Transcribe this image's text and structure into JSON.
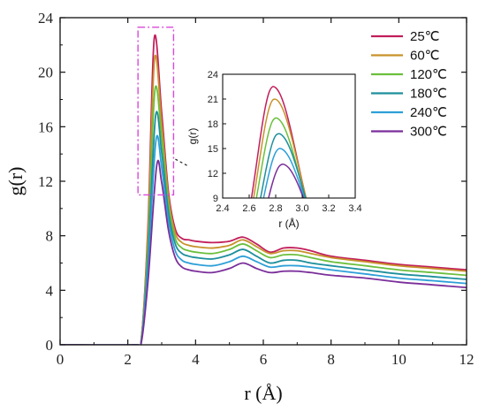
{
  "chart_data": [
    {
      "type": "line",
      "xlabel": "r (Å)",
      "ylabel": "g(r)",
      "xlim": [
        0,
        12
      ],
      "ylim": [
        0,
        24
      ],
      "xticks": [
        "0",
        "2",
        "4",
        "6",
        "8",
        "10",
        "12"
      ],
      "yticks": [
        "0",
        "4",
        "8",
        "12",
        "16",
        "20",
        "24"
      ],
      "legend_position": "top-right",
      "series": [
        {
          "name": "25℃",
          "color": "#c21f5c",
          "x": [
            0,
            2.2,
            2.4,
            2.6,
            2.78,
            3.0,
            3.2,
            3.4,
            3.6,
            3.8,
            4.0,
            4.5,
            5.0,
            5.4,
            5.8,
            6.2,
            6.6,
            7.0,
            7.4,
            8.0,
            9.0,
            10.0,
            11.0,
            12.0
          ],
          "y": [
            0,
            0,
            0.5,
            9.0,
            22.5,
            17.0,
            11.2,
            8.5,
            7.8,
            7.7,
            7.6,
            7.5,
            7.6,
            7.9,
            7.4,
            6.8,
            7.1,
            7.1,
            6.9,
            6.5,
            6.2,
            5.9,
            5.7,
            5.5
          ]
        },
        {
          "name": "60℃",
          "color": "#c7922a",
          "x": [
            0,
            2.2,
            2.4,
            2.6,
            2.79,
            3.0,
            3.2,
            3.4,
            3.6,
            3.8,
            4.0,
            4.5,
            5.0,
            5.4,
            5.8,
            6.2,
            6.6,
            7.0,
            7.4,
            8.0,
            9.0,
            10.0,
            11.0,
            12.0
          ],
          "y": [
            0,
            0,
            0.5,
            8.4,
            21.0,
            16.2,
            10.8,
            8.2,
            7.5,
            7.3,
            7.2,
            7.1,
            7.3,
            7.7,
            7.2,
            6.7,
            6.9,
            6.9,
            6.7,
            6.4,
            6.1,
            5.8,
            5.6,
            5.4
          ]
        },
        {
          "name": "120℃",
          "color": "#6cbf3c",
          "x": [
            0,
            2.2,
            2.4,
            2.6,
            2.8,
            3.0,
            3.2,
            3.4,
            3.6,
            3.8,
            4.0,
            4.5,
            5.0,
            5.4,
            5.8,
            6.2,
            6.6,
            7.0,
            7.4,
            8.0,
            9.0,
            10.0,
            11.0,
            12.0
          ],
          "y": [
            0,
            0,
            0.4,
            7.5,
            18.7,
            15.2,
            10.3,
            7.8,
            7.1,
            6.9,
            6.8,
            6.7,
            7.0,
            7.4,
            6.9,
            6.4,
            6.6,
            6.6,
            6.4,
            6.1,
            5.8,
            5.5,
            5.3,
            5.1
          ]
        },
        {
          "name": "180℃",
          "color": "#1e8f9c",
          "x": [
            0,
            2.2,
            2.4,
            2.6,
            2.82,
            3.0,
            3.2,
            3.4,
            3.6,
            3.8,
            4.0,
            4.5,
            5.0,
            5.4,
            5.8,
            6.2,
            6.6,
            7.0,
            7.4,
            8.0,
            9.0,
            10.0,
            11.0,
            12.0
          ],
          "y": [
            0,
            0,
            0.3,
            6.6,
            16.8,
            14.1,
            9.7,
            7.4,
            6.7,
            6.5,
            6.4,
            6.3,
            6.6,
            7.0,
            6.5,
            6.0,
            6.2,
            6.2,
            6.0,
            5.8,
            5.5,
            5.2,
            5.0,
            4.8
          ]
        },
        {
          "name": "240℃",
          "color": "#2d9fd8",
          "x": [
            0,
            2.2,
            2.4,
            2.6,
            2.83,
            3.0,
            3.2,
            3.4,
            3.6,
            3.8,
            4.0,
            4.5,
            5.0,
            5.4,
            5.8,
            6.2,
            6.6,
            7.0,
            7.4,
            8.0,
            9.0,
            10.0,
            11.0,
            12.0
          ],
          "y": [
            0,
            0,
            0.3,
            5.8,
            15.0,
            13.0,
            9.1,
            6.9,
            6.2,
            6.0,
            5.9,
            5.8,
            6.1,
            6.5,
            6.1,
            5.7,
            5.8,
            5.8,
            5.7,
            5.5,
            5.2,
            4.9,
            4.7,
            4.5
          ]
        },
        {
          "name": "300℃",
          "color": "#7a2e9a",
          "x": [
            0,
            2.2,
            2.4,
            2.6,
            2.85,
            3.0,
            3.2,
            3.4,
            3.6,
            3.8,
            4.0,
            4.5,
            5.0,
            5.4,
            5.8,
            6.2,
            6.6,
            7.0,
            7.4,
            8.0,
            9.0,
            10.0,
            11.0,
            12.0
          ],
          "y": [
            0,
            0,
            0.2,
            4.8,
            13.1,
            11.9,
            8.4,
            6.4,
            5.7,
            5.5,
            5.4,
            5.3,
            5.6,
            6.0,
            5.6,
            5.3,
            5.4,
            5.4,
            5.3,
            5.1,
            4.9,
            4.6,
            4.4,
            4.2
          ]
        }
      ]
    },
    {
      "type": "line",
      "inset": true,
      "xlabel": "r (Å)",
      "ylabel": "g(r)",
      "xlim": [
        2.4,
        3.4
      ],
      "ylim": [
        9,
        24
      ],
      "xticks": [
        "2.4",
        "2.6",
        "2.8",
        "3.0",
        "3.2",
        "3.4"
      ],
      "yticks": [
        "9",
        "12",
        "15",
        "18",
        "21",
        "24"
      ],
      "series": [
        {
          "name": "25℃",
          "color": "#c21f5c",
          "peak_x": 2.78,
          "peak_y": 22.5
        },
        {
          "name": "60℃",
          "color": "#c7922a",
          "peak_x": 2.79,
          "peak_y": 21.0
        },
        {
          "name": "120℃",
          "color": "#6cbf3c",
          "peak_x": 2.8,
          "peak_y": 18.7
        },
        {
          "name": "180℃",
          "color": "#1e8f9c",
          "peak_x": 2.82,
          "peak_y": 16.8
        },
        {
          "name": "240℃",
          "color": "#2d9fd8",
          "peak_x": 2.83,
          "peak_y": 15.0
        },
        {
          "name": "300℃",
          "color": "#7a2e9a",
          "peak_x": 2.85,
          "peak_y": 13.1
        }
      ]
    }
  ],
  "highlight_box_color": "#d84ad8"
}
